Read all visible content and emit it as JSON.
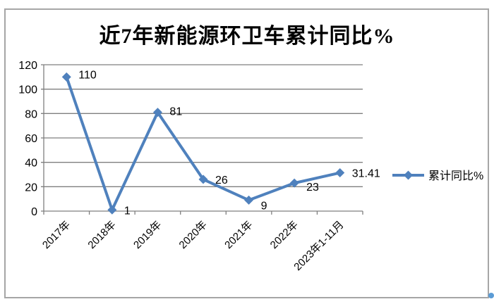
{
  "page": {
    "background": "#ffffff",
    "frame_border_color": "#a6a6a6",
    "cursor_dot_color": "#5b9bd5"
  },
  "chart_data": {
    "type": "line",
    "title": "近7年新能源环卫车累计同比%",
    "categories": [
      "2017年",
      "2018年",
      "2019年",
      "2020年",
      "2021年",
      "2022年",
      "2023年1-11月"
    ],
    "series": [
      {
        "name": "累计同比%",
        "values": [
          110,
          1,
          81,
          26,
          9,
          23,
          31.41
        ]
      }
    ],
    "data_labels": [
      "110",
      "1",
      "81",
      "26",
      "9",
      "23",
      "31.41"
    ],
    "xlabel": "",
    "ylabel": "",
    "ylim": [
      0,
      120
    ],
    "y_ticks": [
      0,
      20,
      40,
      60,
      80,
      100,
      120
    ],
    "grid": true,
    "legend": {
      "label": "累计同比%",
      "position": "right-middle",
      "marker": "diamond"
    },
    "line_color": "#4f81bd",
    "marker_shape": "diamond",
    "grid_color": "#7f7f7f",
    "axis_color": "#7f7f7f",
    "text_color": "#000000"
  }
}
